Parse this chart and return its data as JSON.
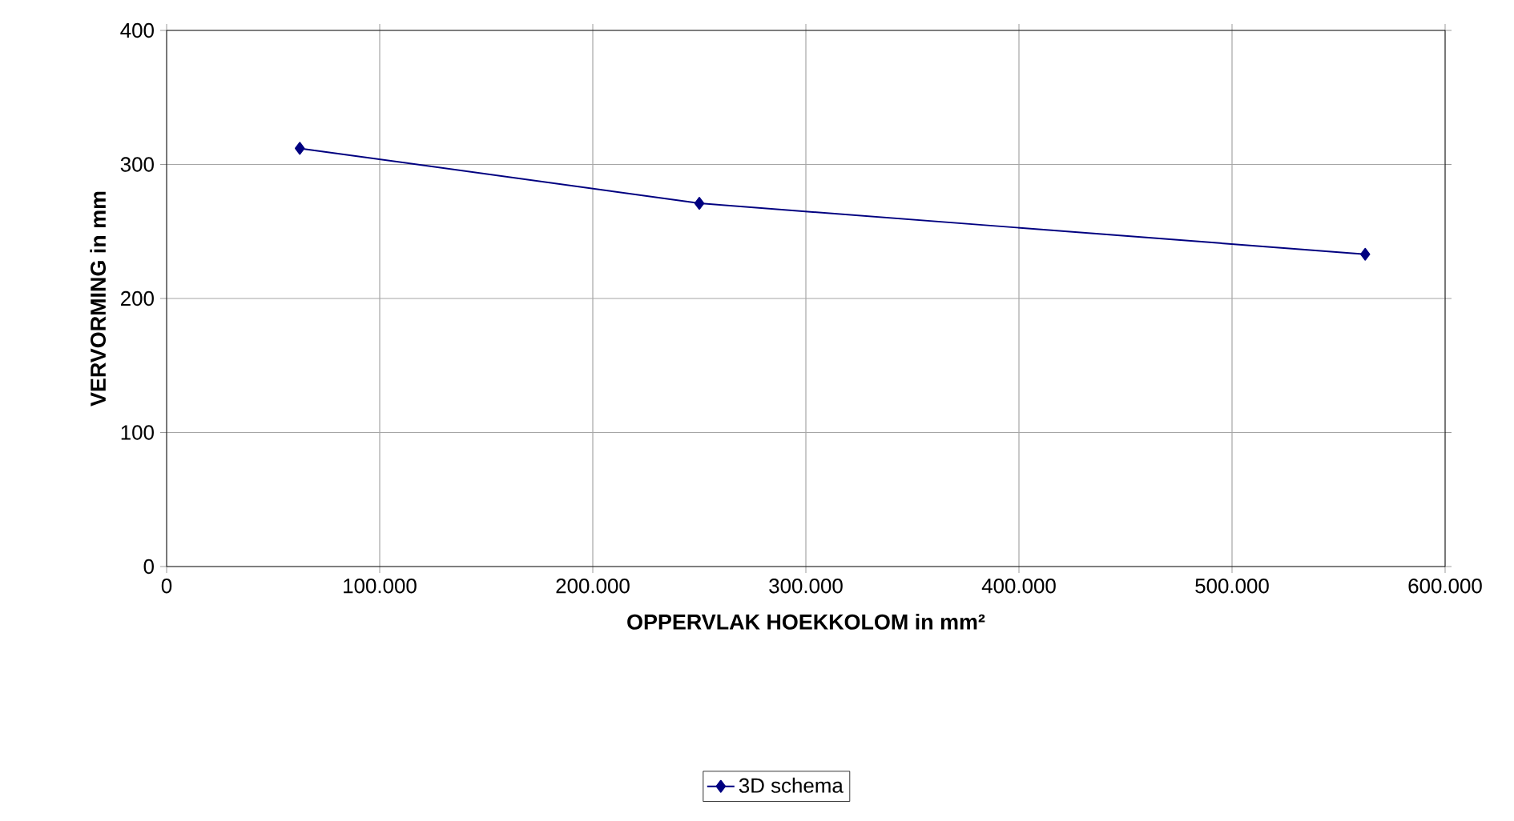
{
  "chart_data": {
    "type": "line",
    "xlabel": "OPPERVLAK HOEKKOLOM in mm²",
    "ylabel": "VERVORMING in mm",
    "x": [
      62500,
      250000,
      562500
    ],
    "series": [
      {
        "name": "3D schema",
        "color": "#000080",
        "values": [
          312,
          271,
          233
        ]
      }
    ],
    "xlim": [
      0,
      600000
    ],
    "xticks": [
      0,
      {
        "value": 100000,
        "label": "100.000"
      },
      {
        "value": 200000,
        "label": "200.000"
      },
      {
        "value": 300000,
        "label": "300.000"
      },
      {
        "value": 400000,
        "label": "400.000"
      },
      {
        "value": 500000,
        "label": "500.000"
      },
      {
        "value": 600000,
        "label": "600.000"
      }
    ],
    "ylim": [
      0,
      400
    ],
    "yticks": [
      0,
      100,
      200,
      300,
      400
    ],
    "grid": true,
    "legend": "bottom",
    "marker": "diamond",
    "line_style": "solid"
  }
}
